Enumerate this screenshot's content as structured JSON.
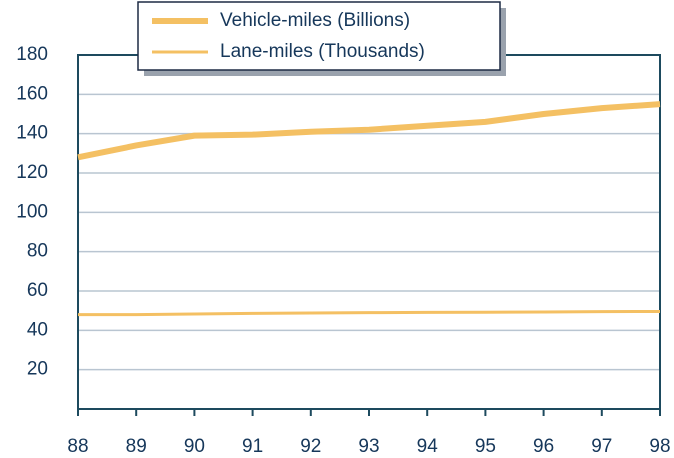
{
  "chart_data": {
    "type": "line",
    "categories": [
      "88",
      "89",
      "90",
      "91",
      "92",
      "93",
      "94",
      "95",
      "96",
      "97",
      "98"
    ],
    "series": [
      {
        "name": "Vehicle-miles (Billions)",
        "color": "#f4c063",
        "values": [
          128,
          134,
          139,
          139.5,
          141,
          142,
          144,
          146,
          150,
          153,
          155
        ]
      },
      {
        "name": "Lane-miles (Thousands)",
        "color": "#f4c063",
        "values": [
          48,
          48,
          48.3,
          48.6,
          48.8,
          49,
          49.1,
          49.2,
          49.3,
          49.5,
          49.6
        ]
      }
    ],
    "ylim": [
      0,
      180
    ],
    "yticks": [
      20,
      40,
      60,
      80,
      100,
      120,
      140,
      160,
      180
    ],
    "grid": true,
    "legend": "top"
  }
}
